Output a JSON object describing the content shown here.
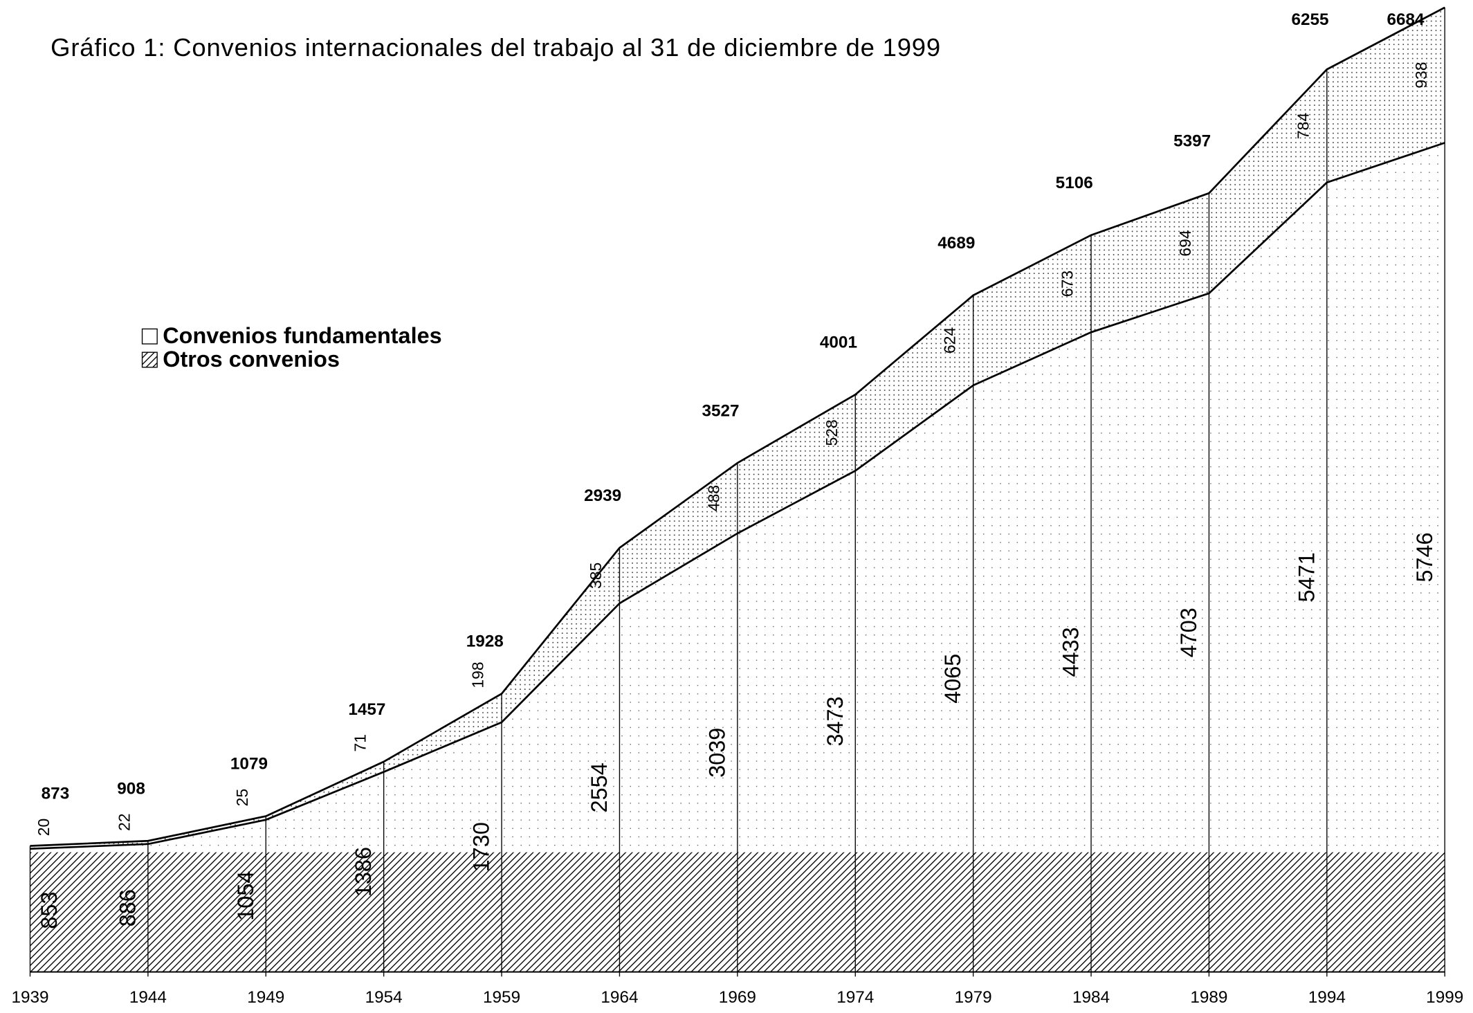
{
  "chart_data": {
    "type": "stacked_area",
    "title": "Gráfico 1: Convenios internacionales del trabajo al 31 de diciembre de 1999",
    "x": [
      1939,
      1944,
      1949,
      1954,
      1959,
      1964,
      1969,
      1974,
      1979,
      1984,
      1989,
      1994,
      1999
    ],
    "xlim": [
      1939,
      1999
    ],
    "xticks": [
      1939,
      1944,
      1949,
      1954,
      1959,
      1964,
      1969,
      1974,
      1979,
      1984,
      1989,
      1994,
      1999
    ],
    "series": [
      {
        "name": "Otros convenios",
        "color": "#000000",
        "values": [
          853,
          886,
          1054,
          1386,
          1730,
          2554,
          3039,
          3473,
          4065,
          4433,
          4703,
          5471,
          5746
        ]
      },
      {
        "name": "Convenios fundamentales",
        "color": "#000000",
        "values": [
          20,
          22,
          25,
          71,
          198,
          385,
          488,
          528,
          624,
          673,
          694,
          784,
          938
        ]
      }
    ],
    "totals": [
      873,
      908,
      1079,
      1457,
      1928,
      2939,
      3527,
      4001,
      4689,
      5106,
      5397,
      6255,
      6684
    ]
  }
}
